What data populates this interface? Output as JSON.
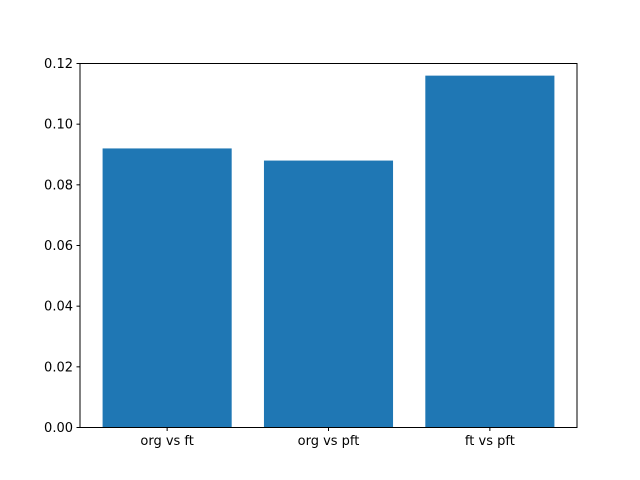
{
  "chart_data": {
    "type": "bar",
    "categories": [
      "org vs ft",
      "org vs pft",
      "ft vs pft"
    ],
    "values": [
      0.092,
      0.088,
      0.116
    ],
    "title": "",
    "xlabel": "",
    "ylabel": "",
    "ylim": [
      0,
      0.12
    ],
    "yticks": [
      0.0,
      0.02,
      0.04,
      0.06,
      0.08,
      0.1,
      0.12
    ],
    "ytick_labels": [
      "0.00",
      "0.02",
      "0.04",
      "0.06",
      "0.08",
      "0.10",
      "0.12"
    ],
    "bar_color": "#1f77b4",
    "axis_color": "#000000",
    "background_color": "#ffffff",
    "grid": false,
    "legend": null
  }
}
